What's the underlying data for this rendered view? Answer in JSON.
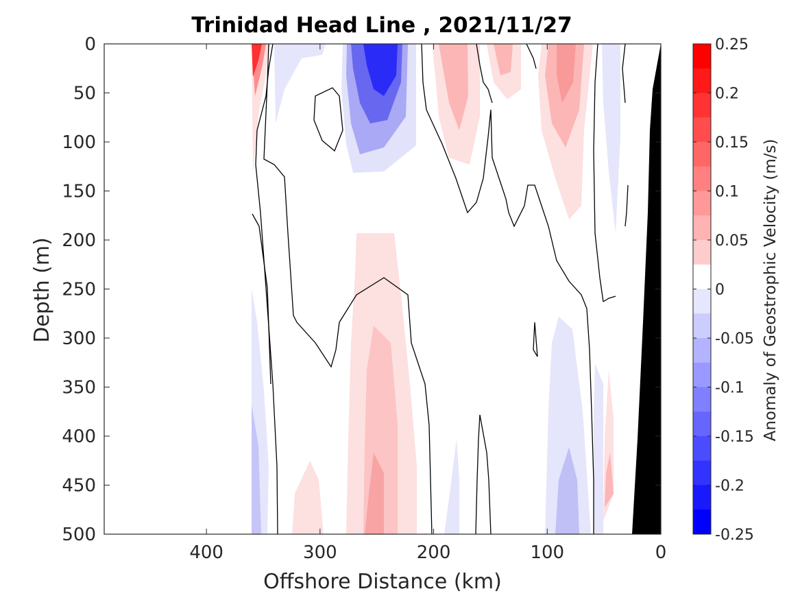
{
  "chart_data": {
    "type": "heatmap",
    "title": "Trinidad Head Line , 2021/11/27",
    "xlabel": "Offshore Distance (km)",
    "ylabel": "Depth (m)",
    "colorbar_label": "Anomaly of Geostrophic Velocity (m/s)",
    "xlim": [
      490,
      0
    ],
    "ylim": [
      0,
      500
    ],
    "x_reversed": true,
    "y_reversed": true,
    "xticks": [
      400,
      300,
      200,
      100,
      0
    ],
    "xtick_labels": [
      "400",
      "300",
      "200",
      "100",
      "0"
    ],
    "yticks": [
      0,
      50,
      100,
      150,
      200,
      250,
      300,
      350,
      400,
      450,
      500
    ],
    "ytick_labels": [
      "0",
      "50",
      "100",
      "150",
      "200",
      "250",
      "300",
      "350",
      "400",
      "450",
      "500"
    ],
    "colorbar_range": [
      -0.25,
      0.25
    ],
    "colorbar_levels": 20,
    "colorbar_ticks": [
      -0.25,
      -0.2,
      -0.15,
      -0.1,
      -0.05,
      0,
      0.05,
      0.1,
      0.15,
      0.2,
      0.25
    ],
    "colorbar_tick_labels": [
      "-0.25",
      "-0.2",
      "-0.15",
      "-0.1",
      "-0.05",
      "0",
      "0.05",
      "0.1",
      "0.15",
      "0.2",
      "0.25"
    ],
    "colormap": "blue-white-red",
    "color_negative": "#0000ff",
    "color_positive": "#ff0000",
    "color_zero": "#ffffff",
    "bathymetry_color": "#000000",
    "data_extent_km": [
      0,
      360
    ],
    "features": [
      {
        "kind": "positive",
        "x": 358,
        "depth": 20,
        "value": 0.17
      },
      {
        "kind": "negative",
        "x": 250,
        "depth": 40,
        "value": -0.17
      },
      {
        "kind": "positive",
        "x": 178,
        "depth": 50,
        "value": 0.07
      },
      {
        "kind": "positive",
        "x": 83,
        "depth": 60,
        "value": 0.08
      },
      {
        "kind": "positive",
        "x": 250,
        "depth": 470,
        "value": 0.07
      },
      {
        "kind": "negative",
        "x": 80,
        "depth": 470,
        "value": -0.07
      },
      {
        "kind": "negative",
        "x": 360,
        "depth": 480,
        "value": -0.04
      },
      {
        "kind": "negative",
        "x": 40,
        "depth": 80,
        "value": -0.03
      }
    ]
  }
}
